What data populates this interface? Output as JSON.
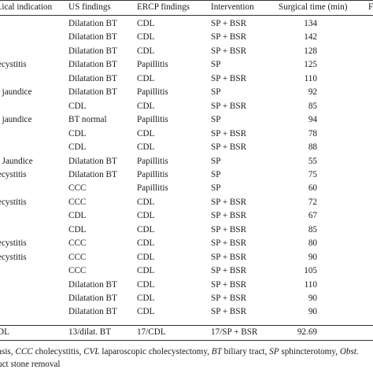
{
  "headers": {
    "clinical_indication": "...ical indication",
    "us_findings": "US findings",
    "ercp_findings": "ERCP findings",
    "intervention": "Intervention",
    "surgical_time": "Surgical time (min)",
    "next_col": "F"
  },
  "rows": [
    {
      "ind": ".",
      "us": "Dilatation BT",
      "ercp": "CDL",
      "intv": "SP + BSR",
      "time": "134"
    },
    {
      "ind": ".",
      "us": "Dilatation BT",
      "ercp": "CDL",
      "intv": "SP + BSR",
      "time": "142"
    },
    {
      "ind": ".",
      "us": "Dilatation BT",
      "ercp": "CDL",
      "intv": "SP + BSR",
      "time": "128"
    },
    {
      "ind": "ecystitis",
      "us": "Dilatation BT",
      "ercp": "Papillitis",
      "intv": "SP",
      "time": "125"
    },
    {
      "ind": ".",
      "us": "Dilatation BT",
      "ercp": "CDL",
      "intv": "SP + BSR",
      "time": "110"
    },
    {
      "ind": ". jaundice",
      "us": "Dilatation BT",
      "ercp": "Papillitis",
      "intv": "SP",
      "time": "92"
    },
    {
      "ind": ".",
      "us": "CDL",
      "ercp": "CDL",
      "intv": "SP + BSR",
      "time": "85"
    },
    {
      "ind": ". jaundice",
      "us": "BT normal",
      "ercp": "Papillitis",
      "intv": "SP",
      "time": "94"
    },
    {
      "ind": ".",
      "us": "CDL",
      "ercp": "CDL",
      "intv": "SP + BSR",
      "time": "78"
    },
    {
      "ind": ".",
      "us": "CDL",
      "ercp": "CDL",
      "intv": "SP + BSR",
      "time": "88"
    },
    {
      "ind": ". Jaundice",
      "us": "Dilatation BT",
      "ercp": "Papillitis",
      "intv": "SP",
      "time": "55"
    },
    {
      "ind": "ecystitis",
      "us": "Dilatation BT",
      "ercp": "Papillitis",
      "intv": "SP",
      "time": "75"
    },
    {
      "ind": ".",
      "us": "CCC",
      "ercp": "Papillitis",
      "intv": "SP",
      "time": "60"
    },
    {
      "ind": "ecystitis",
      "us": "CCC",
      "ercp": "CDL",
      "intv": "SP + BSR",
      "time": "72"
    },
    {
      "ind": ".",
      "us": "CDL",
      "ercp": "CDL",
      "intv": "SP + BSR",
      "time": "67"
    },
    {
      "ind": ".",
      "us": "CDL",
      "ercp": "CDL",
      "intv": "SP + BSR",
      "time": "85"
    },
    {
      "ind": "ecystitis",
      "us": "CCC",
      "ercp": "CDL",
      "intv": "SP + BSR",
      "time": "80"
    },
    {
      "ind": "ecystitis",
      "us": "CCC",
      "ercp": "CDL",
      "intv": "SP + BSR",
      "time": "90"
    },
    {
      "ind": ".",
      "us": "CCC",
      "ercp": "CDL",
      "intv": "SP + BSR",
      "time": "105"
    },
    {
      "ind": ".",
      "us": "Dilatation BT",
      "ercp": "CDL",
      "intv": "SP + BSR",
      "time": "110"
    },
    {
      "ind": ".",
      "us": "Dilatation BT",
      "ercp": "CDL",
      "intv": "SP + BSR",
      "time": "90"
    },
    {
      "ind": ".",
      "us": "Dilatation BT",
      "ercp": "CDL",
      "intv": "SP + BSR",
      "time": "90"
    }
  ],
  "summary": {
    "ind": "DL",
    "us": "13/dilat. BT",
    "ercp": "17/CDL",
    "intv": "17/SP + BSR",
    "time": "92.69"
  },
  "footnote": {
    "line1_parts": [
      {
        "t": "asis, ",
        "i": false
      },
      {
        "t": "CCC",
        "i": true
      },
      {
        "t": " cholecystitis, ",
        "i": false
      },
      {
        "t": "CVL",
        "i": true
      },
      {
        "t": " laparoscopic cholecystectomy, ",
        "i": false
      },
      {
        "t": "BT",
        "i": true
      },
      {
        "t": " biliary tract, ",
        "i": false
      },
      {
        "t": "SP",
        "i": true
      },
      {
        "t": " sphincterotomy, ",
        "i": false
      },
      {
        "t": "Obst.",
        "i": true
      }
    ],
    "line2": "uct stone removal"
  }
}
